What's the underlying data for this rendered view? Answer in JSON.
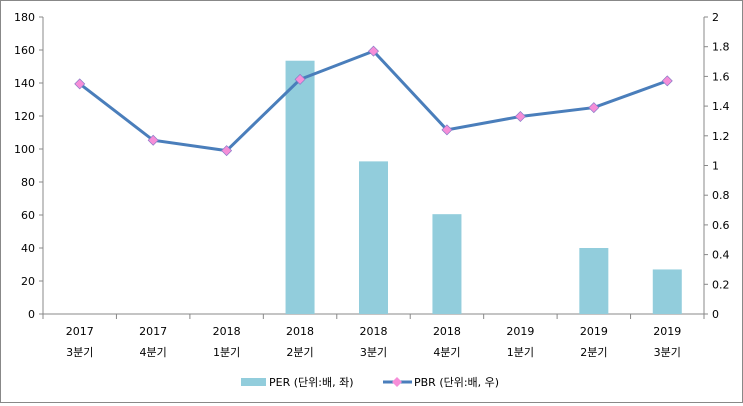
{
  "chart_data": {
    "type": "bar+line",
    "categories": [
      [
        "2017",
        "3분기"
      ],
      [
        "2017",
        "4분기"
      ],
      [
        "2018",
        "1분기"
      ],
      [
        "2018",
        "2분기"
      ],
      [
        "2018",
        "3분기"
      ],
      [
        "2018",
        "4분기"
      ],
      [
        "2019",
        "1분기"
      ],
      [
        "2019",
        "2분기"
      ],
      [
        "2019",
        "3분기"
      ]
    ],
    "series": [
      {
        "name": "PER (단위:배, 좌)",
        "type": "bar",
        "axis": "left",
        "color": "#92CDDC",
        "values": [
          null,
          null,
          null,
          153.5,
          92.5,
          60.5,
          null,
          40,
          27
        ]
      },
      {
        "name": "PBR (단위:배, 우)",
        "type": "line",
        "axis": "right",
        "color": "#4A7EBB",
        "marker_color": "#F68ED8",
        "values": [
          1.55,
          1.17,
          1.1,
          1.58,
          1.77,
          1.24,
          1.33,
          1.39,
          1.57
        ]
      }
    ],
    "left_axis": {
      "min": 0,
      "max": 180,
      "step": 20,
      "ticks": [
        "0",
        "20",
        "40",
        "60",
        "80",
        "100",
        "120",
        "140",
        "160",
        "180"
      ]
    },
    "right_axis": {
      "min": 0,
      "max": 2,
      "step": 0.2,
      "ticks": [
        "0",
        "0.2",
        "0.4",
        "0.6",
        "0.8",
        "1",
        "1.2",
        "1.4",
        "1.6",
        "1.8",
        "2"
      ]
    },
    "legend_position": "bottom",
    "grid": false
  }
}
